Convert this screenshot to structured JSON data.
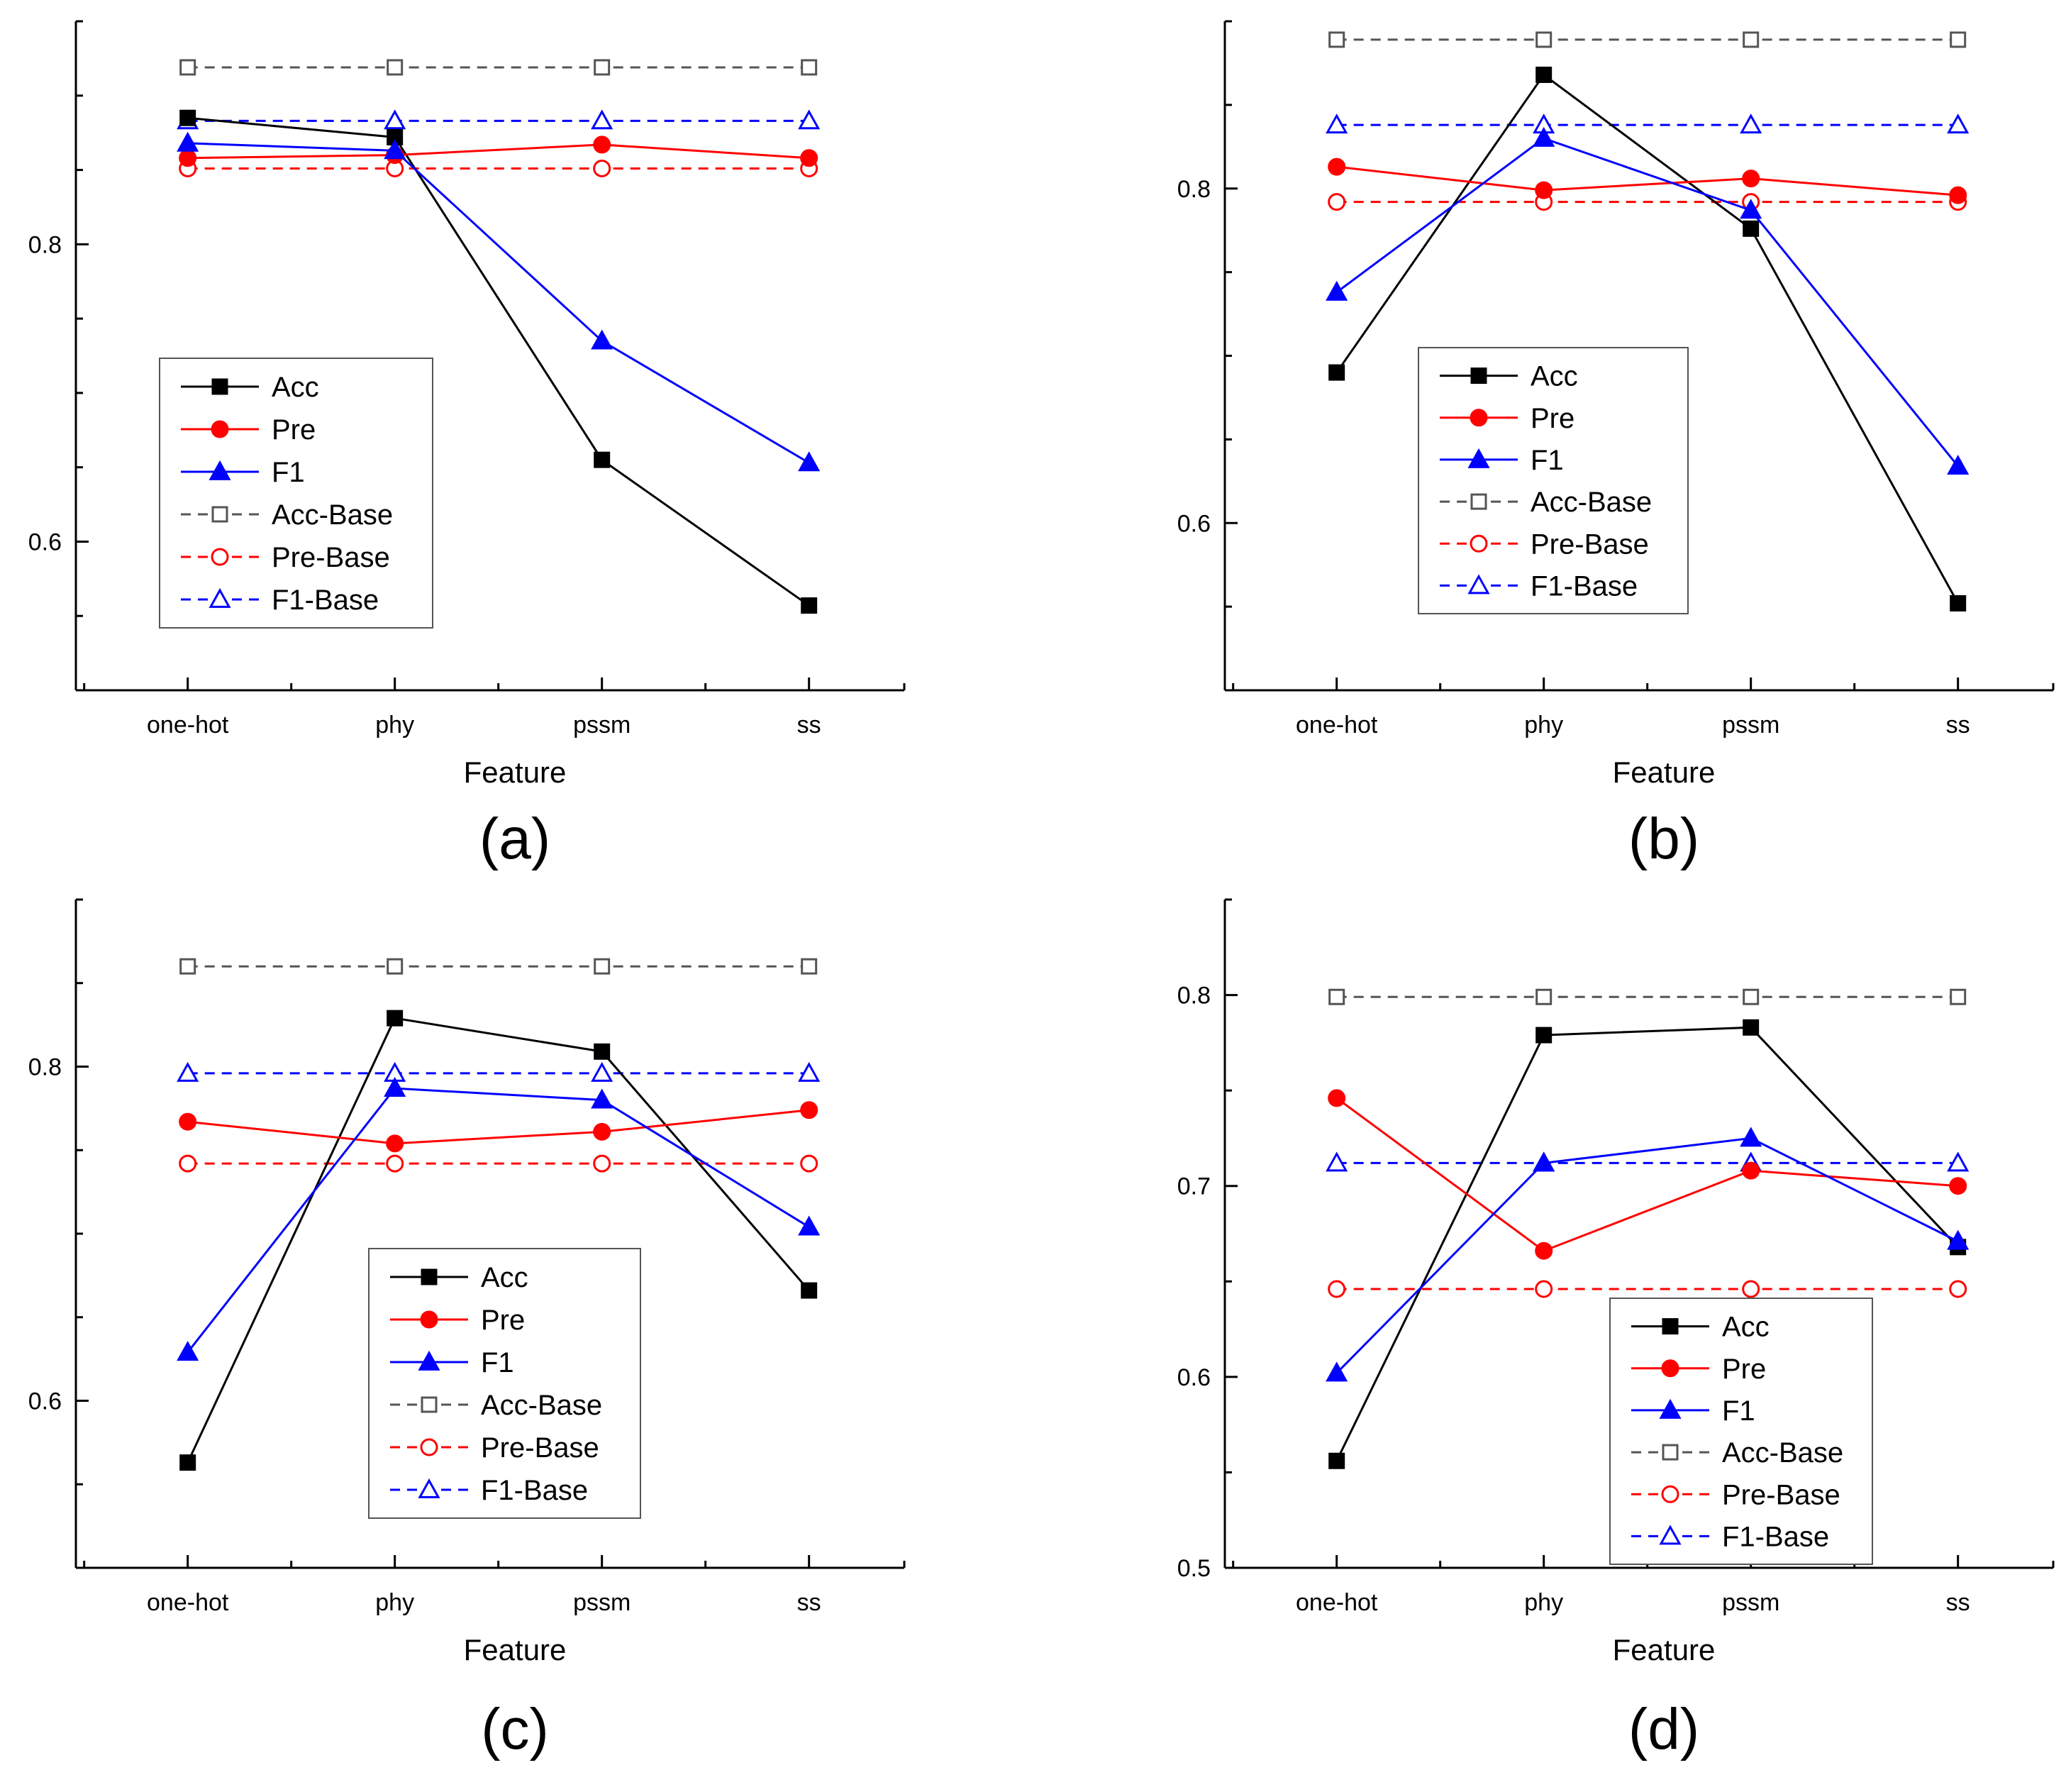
{
  "chart_data": [
    {
      "panel": "(a)",
      "type": "line",
      "categories": [
        "one-hot",
        "phy",
        "pssm",
        "ss"
      ],
      "xlabel": "Feature",
      "ylabel": "",
      "ylim": [
        0.5,
        0.95
      ],
      "yticks": [
        "0.6",
        "0.8"
      ],
      "legend_position": "lower-left",
      "series": [
        {
          "name": "Acc",
          "values": [
            0.885,
            0.872,
            0.655,
            0.557
          ],
          "color": "#000000",
          "style": "solid",
          "marker": "square-filled"
        },
        {
          "name": "Pre",
          "values": [
            0.858,
            0.86,
            0.867,
            0.858
          ],
          "color": "#ff0000",
          "style": "solid",
          "marker": "circle-filled"
        },
        {
          "name": "F1",
          "values": [
            0.868,
            0.863,
            0.735,
            0.653
          ],
          "color": "#0000ff",
          "style": "solid",
          "marker": "triangle-filled"
        },
        {
          "name": "Acc-Base",
          "values": [
            0.919,
            0.919,
            0.919,
            0.919
          ],
          "color": "#555555",
          "style": "dashed",
          "marker": "square-open"
        },
        {
          "name": "Pre-Base",
          "values": [
            0.851,
            0.851,
            0.851,
            0.851
          ],
          "color": "#ff0000",
          "style": "dashed",
          "marker": "circle-open"
        },
        {
          "name": "F1-Base",
          "values": [
            0.883,
            0.883,
            0.883,
            0.883
          ],
          "color": "#0000ff",
          "style": "dashed",
          "marker": "triangle-open"
        }
      ]
    },
    {
      "panel": "(b)",
      "type": "line",
      "categories": [
        "one-hot",
        "phy",
        "pssm",
        "ss"
      ],
      "xlabel": "Feature",
      "ylabel": "",
      "ylim": [
        0.5,
        0.9
      ],
      "yticks": [
        "0.6",
        "0.8"
      ],
      "legend_position": "lower-left",
      "series": [
        {
          "name": "Acc",
          "values": [
            0.69,
            0.868,
            0.776,
            0.552
          ],
          "color": "#000000",
          "style": "solid",
          "marker": "square-filled"
        },
        {
          "name": "Pre",
          "values": [
            0.813,
            0.799,
            0.806,
            0.796
          ],
          "color": "#ff0000",
          "style": "solid",
          "marker": "circle-filled"
        },
        {
          "name": "F1",
          "values": [
            0.738,
            0.83,
            0.787,
            0.634
          ],
          "color": "#0000ff",
          "style": "solid",
          "marker": "triangle-filled"
        },
        {
          "name": "Acc-Base",
          "values": [
            0.889,
            0.889,
            0.889,
            0.889
          ],
          "color": "#555555",
          "style": "dashed",
          "marker": "square-open"
        },
        {
          "name": "Pre-Base",
          "values": [
            0.792,
            0.792,
            0.792,
            0.792
          ],
          "color": "#ff0000",
          "style": "dashed",
          "marker": "circle-open"
        },
        {
          "name": "F1-Base",
          "values": [
            0.838,
            0.838,
            0.838,
            0.838
          ],
          "color": "#0000ff",
          "style": "dashed",
          "marker": "triangle-open"
        }
      ]
    },
    {
      "panel": "(c)",
      "type": "line",
      "categories": [
        "one-hot",
        "phy",
        "pssm",
        "ss"
      ],
      "xlabel": "Feature",
      "ylabel": "",
      "ylim": [
        0.5,
        0.9
      ],
      "yticks": [
        "0.6",
        "0.8"
      ],
      "legend_position": "lower-center",
      "series": [
        {
          "name": "Acc",
          "values": [
            0.563,
            0.829,
            0.809,
            0.666
          ],
          "color": "#000000",
          "style": "solid",
          "marker": "square-filled"
        },
        {
          "name": "Pre",
          "values": [
            0.767,
            0.754,
            0.761,
            0.774
          ],
          "color": "#ff0000",
          "style": "solid",
          "marker": "circle-filled"
        },
        {
          "name": "F1",
          "values": [
            0.629,
            0.787,
            0.78,
            0.704
          ],
          "color": "#0000ff",
          "style": "solid",
          "marker": "triangle-filled"
        },
        {
          "name": "Acc-Base",
          "values": [
            0.86,
            0.86,
            0.86,
            0.86
          ],
          "color": "#555555",
          "style": "dashed",
          "marker": "square-open"
        },
        {
          "name": "Pre-Base",
          "values": [
            0.742,
            0.742,
            0.742,
            0.742
          ],
          "color": "#ff0000",
          "style": "dashed",
          "marker": "circle-open"
        },
        {
          "name": "F1-Base",
          "values": [
            0.796,
            0.796,
            0.796,
            0.796
          ],
          "color": "#0000ff",
          "style": "dashed",
          "marker": "triangle-open"
        }
      ]
    },
    {
      "panel": "(d)",
      "type": "line",
      "categories": [
        "one-hot",
        "phy",
        "pssm",
        "ss"
      ],
      "xlabel": "Feature",
      "ylabel": "",
      "ylim": [
        0.5,
        0.85
      ],
      "yticks": [
        "0.5",
        "0.6",
        "0.7",
        "0.8"
      ],
      "legend_position": "lower-right",
      "series": [
        {
          "name": "Acc",
          "values": [
            0.556,
            0.779,
            0.783,
            0.668
          ],
          "color": "#000000",
          "style": "solid",
          "marker": "square-filled"
        },
        {
          "name": "Pre",
          "values": [
            0.746,
            0.666,
            0.708,
            0.7
          ],
          "color": "#ff0000",
          "style": "solid",
          "marker": "circle-filled"
        },
        {
          "name": "F1",
          "values": [
            0.602,
            0.712,
            0.725,
            0.671
          ],
          "color": "#0000ff",
          "style": "solid",
          "marker": "triangle-filled"
        },
        {
          "name": "Acc-Base",
          "values": [
            0.799,
            0.799,
            0.799,
            0.799
          ],
          "color": "#555555",
          "style": "dashed",
          "marker": "square-open"
        },
        {
          "name": "Pre-Base",
          "values": [
            0.646,
            0.646,
            0.646,
            0.646
          ],
          "color": "#ff0000",
          "style": "dashed",
          "marker": "circle-open"
        },
        {
          "name": "F1-Base",
          "values": [
            0.712,
            0.712,
            0.712,
            0.712
          ],
          "color": "#0000ff",
          "style": "dashed",
          "marker": "triangle-open"
        }
      ]
    }
  ]
}
